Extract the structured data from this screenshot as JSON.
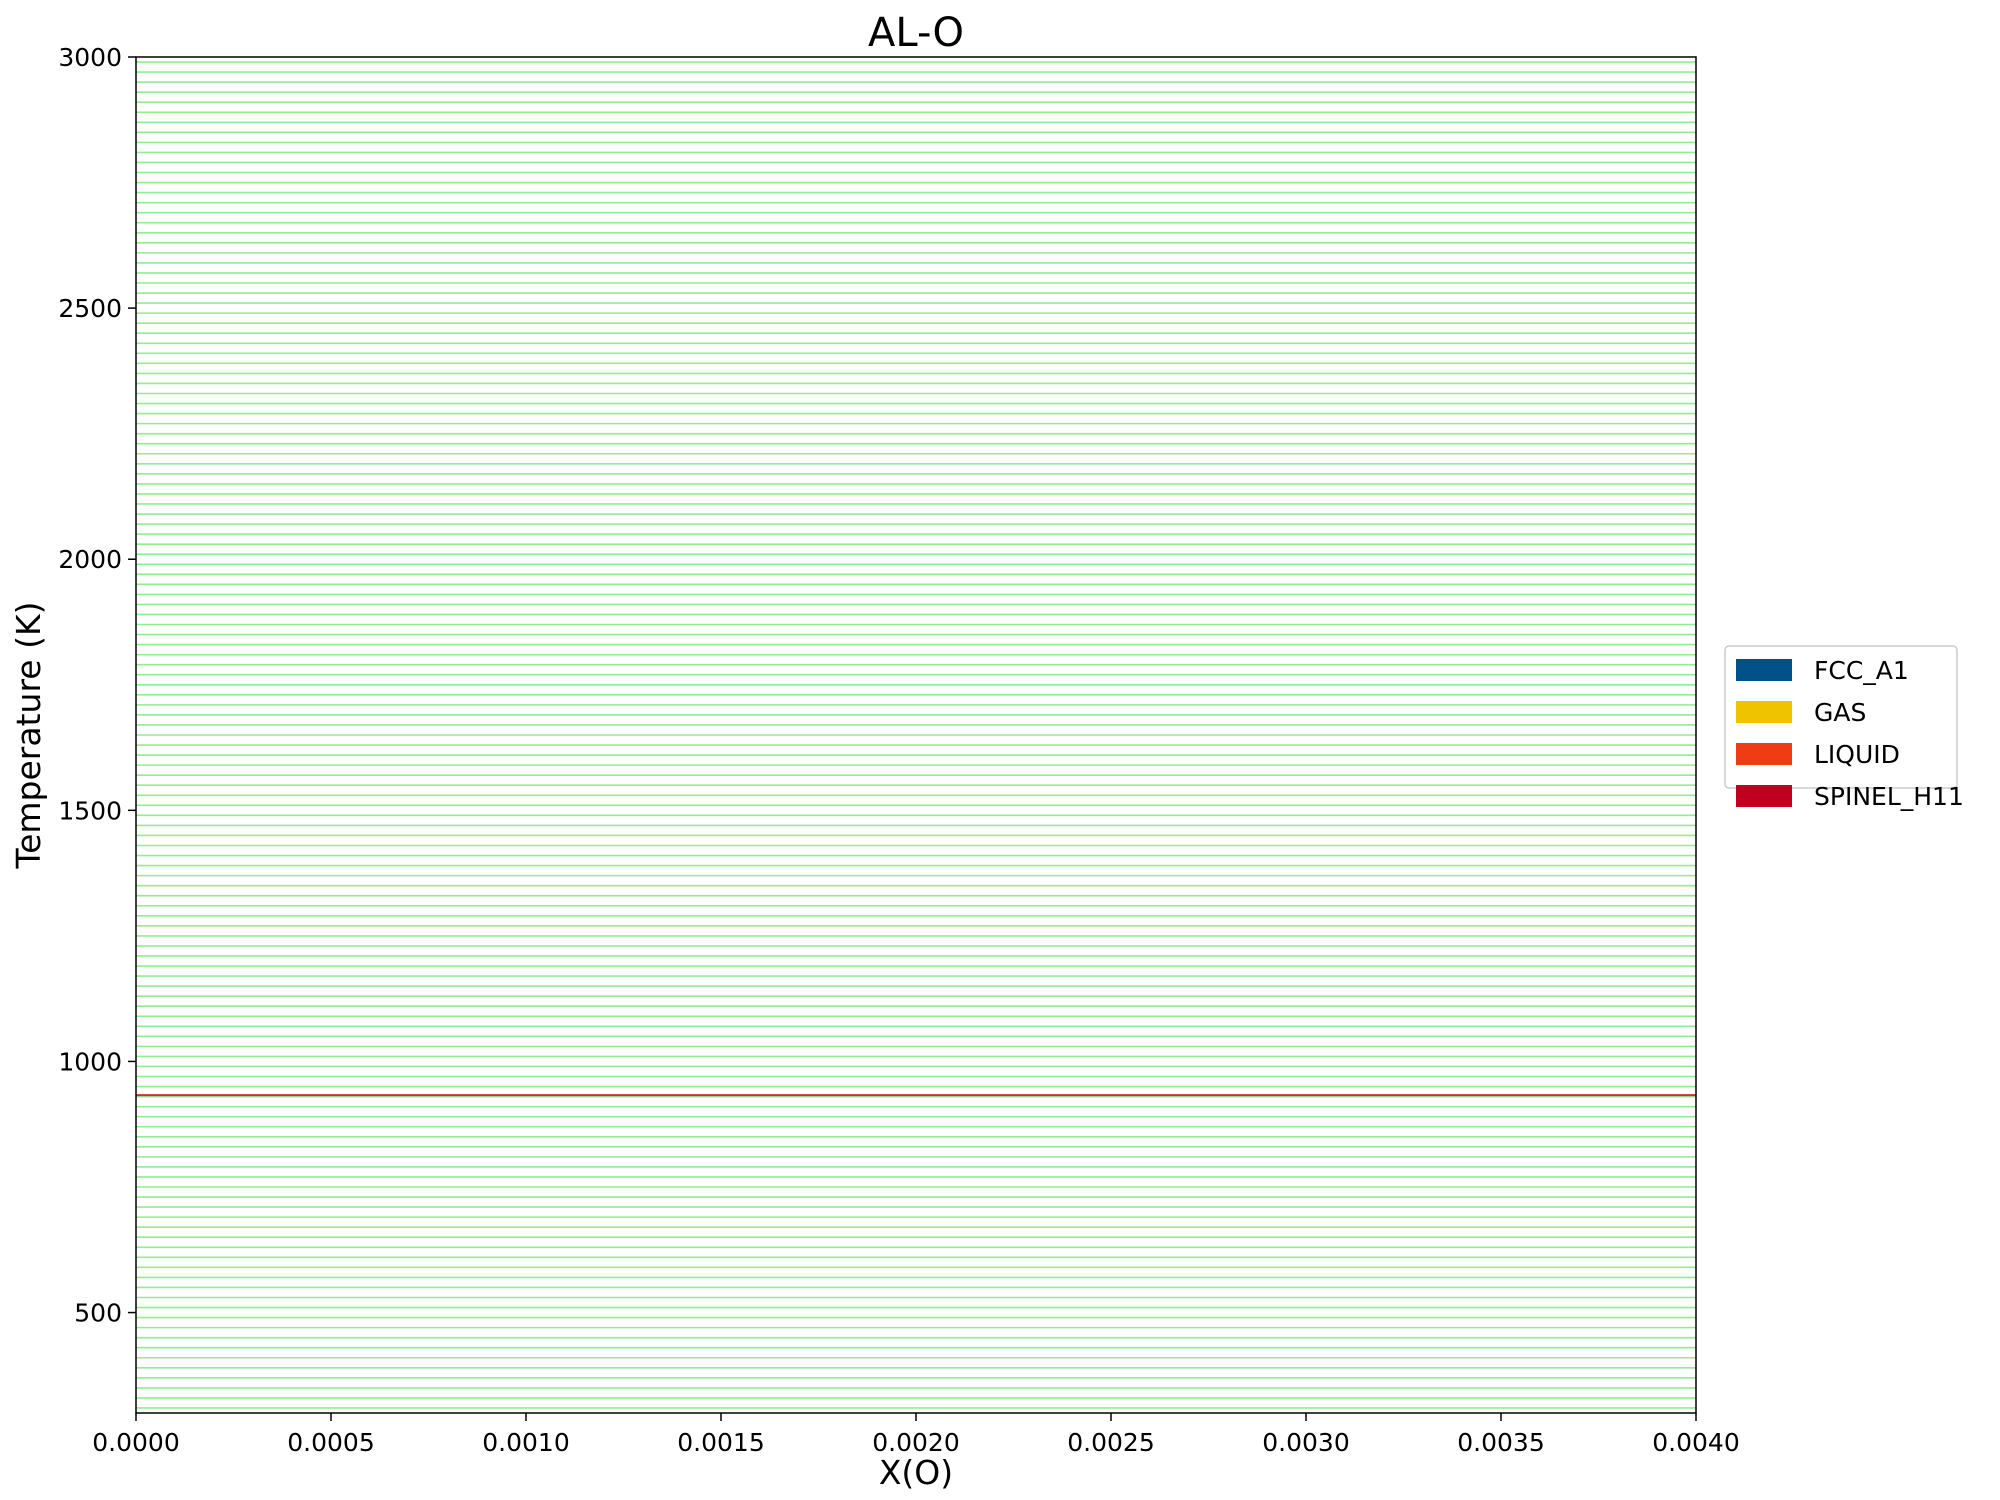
{
  "chart_data": {
    "type": "line",
    "title": "AL-O",
    "xlabel": "X(O)",
    "ylabel": "Temperature (K)",
    "xlim": [
      0.0,
      0.004
    ],
    "ylim": [
      300,
      3000
    ],
    "x_ticks": [
      "0.0000",
      "0.0005",
      "0.0010",
      "0.0015",
      "0.0020",
      "0.0025",
      "0.0030",
      "0.0035",
      "0.0040"
    ],
    "y_ticks": [
      "500",
      "1000",
      "1500",
      "2000",
      "2500",
      "3000"
    ],
    "tie_lines": {
      "color": "#90ee90",
      "t_start": 310,
      "t_end": 3000,
      "t_step": 20
    },
    "boundary_lines": [
      {
        "temperature": 933,
        "color": "#c0392b"
      }
    ],
    "legend": {
      "placement": "right",
      "entries": [
        {
          "name": "FCC_A1",
          "color": "#00508a"
        },
        {
          "name": "GAS",
          "color": "#f0c300"
        },
        {
          "name": "LIQUID",
          "color": "#f03c14"
        },
        {
          "name": "SPINEL_H11",
          "color": "#c0001e"
        }
      ]
    }
  }
}
